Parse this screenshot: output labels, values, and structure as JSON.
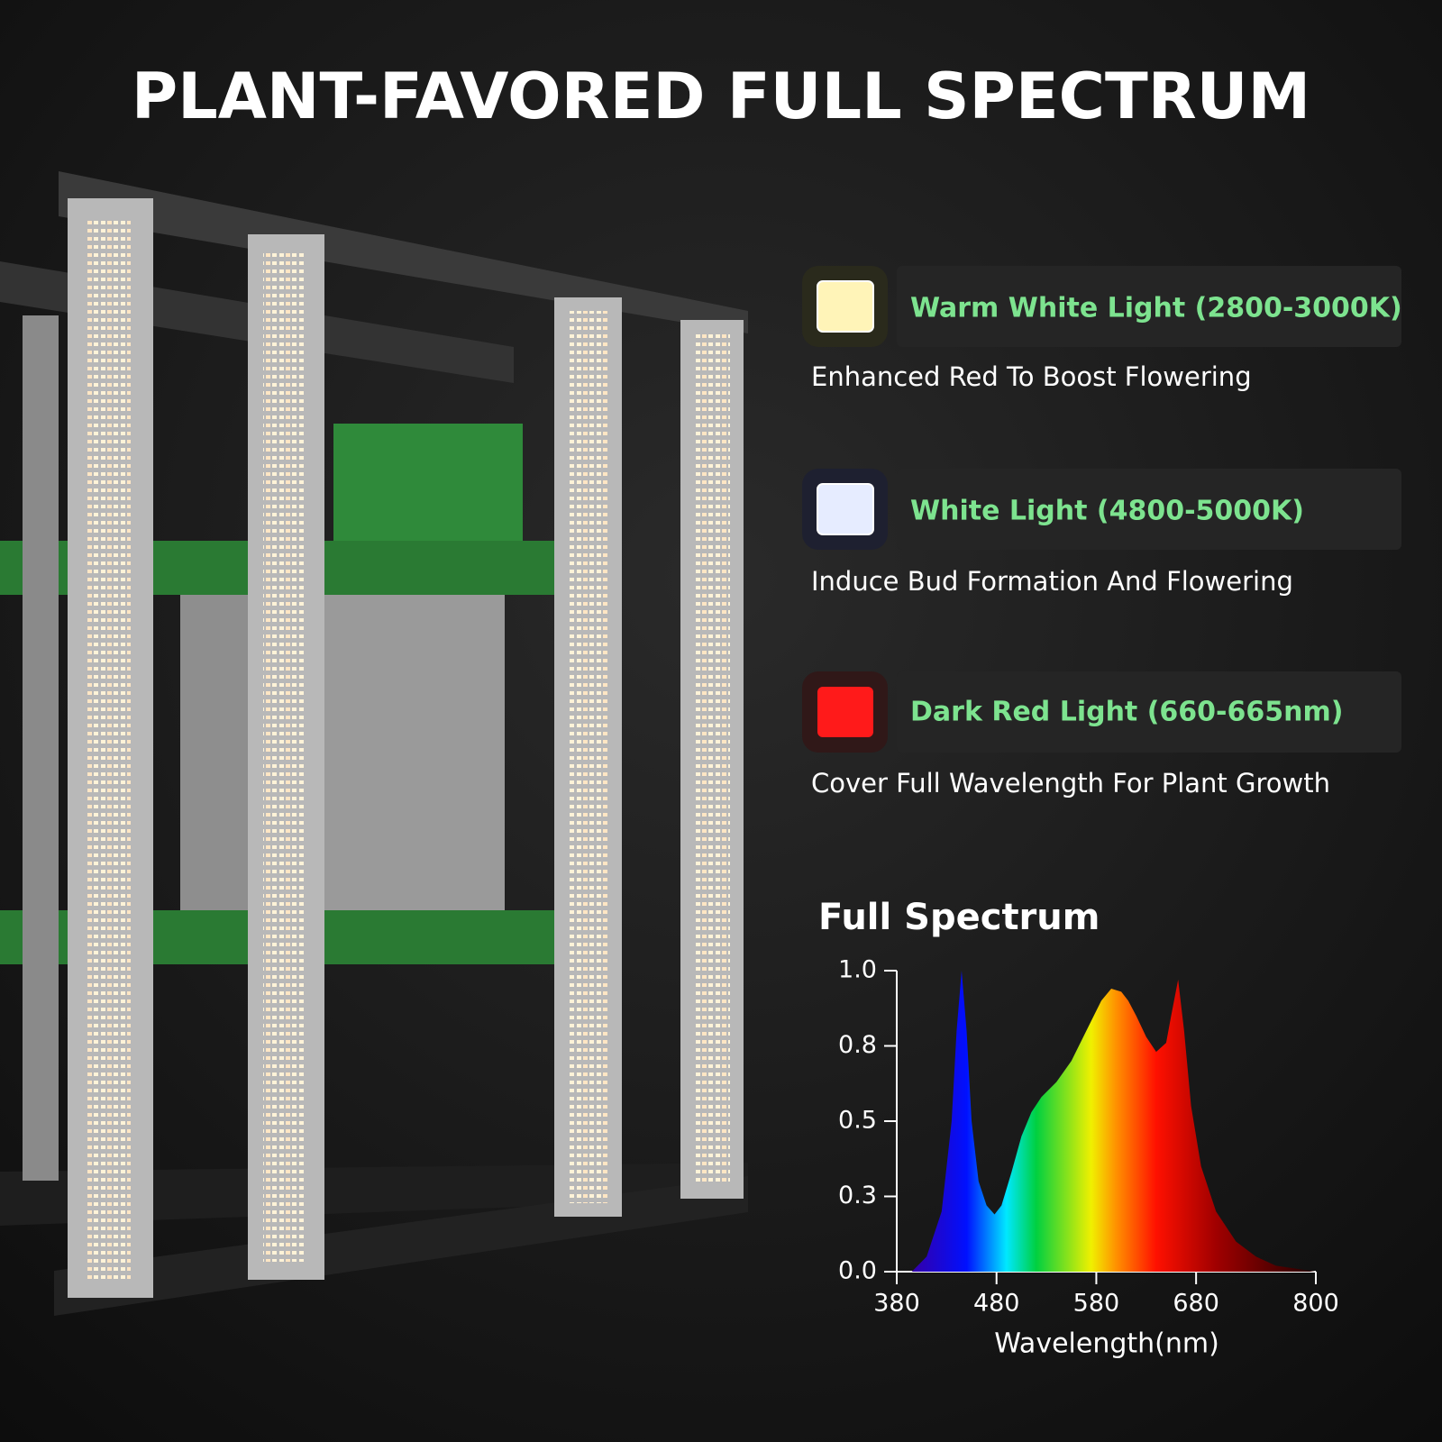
{
  "title": "PLANT-FAVORED FULL SPECTRUM",
  "features": [
    {
      "label": "Warm White Light (2800-3000K)",
      "description": "Enhanced Red To Boost Flowering",
      "color": "#fff4b8"
    },
    {
      "label": "White Light (4800-5000K)",
      "description": "Induce Bud Formation And Flowering",
      "color": "#e6ecff"
    },
    {
      "label": "Dark Red Light (660-665nm)",
      "description": "Cover Full Wavelength For Plant Growth",
      "color": "#ff1a1a"
    }
  ],
  "chart_data": {
    "type": "area",
    "title": "Full Spectrum",
    "x_label": "Wavelength(nm)",
    "x": [
      395,
      410,
      425,
      435,
      440,
      445,
      450,
      455,
      462,
      470,
      478,
      485,
      495,
      505,
      515,
      525,
      540,
      555,
      570,
      585,
      595,
      605,
      612,
      620,
      630,
      640,
      650,
      655,
      662,
      668,
      675,
      685,
      700,
      720,
      740,
      760,
      780,
      800
    ],
    "values": [
      0,
      0.05,
      0.2,
      0.5,
      0.8,
      1.0,
      0.8,
      0.5,
      0.3,
      0.22,
      0.19,
      0.22,
      0.33,
      0.45,
      0.53,
      0.58,
      0.63,
      0.7,
      0.8,
      0.9,
      0.94,
      0.93,
      0.9,
      0.85,
      0.78,
      0.73,
      0.76,
      0.85,
      0.97,
      0.8,
      0.55,
      0.35,
      0.2,
      0.1,
      0.05,
      0.02,
      0.01,
      0
    ],
    "xlim": [
      380,
      800
    ],
    "xticks": [
      380,
      480,
      580,
      680,
      800
    ],
    "ylim": [
      0,
      1
    ],
    "yticks": [
      {
        "value": 0,
        "label": "0.0"
      },
      {
        "value": 0.25,
        "label": "0.3"
      },
      {
        "value": 0.5,
        "label": "0.5"
      },
      {
        "value": 0.75,
        "label": "0.8"
      },
      {
        "value": 1,
        "label": "1.0"
      }
    ]
  }
}
